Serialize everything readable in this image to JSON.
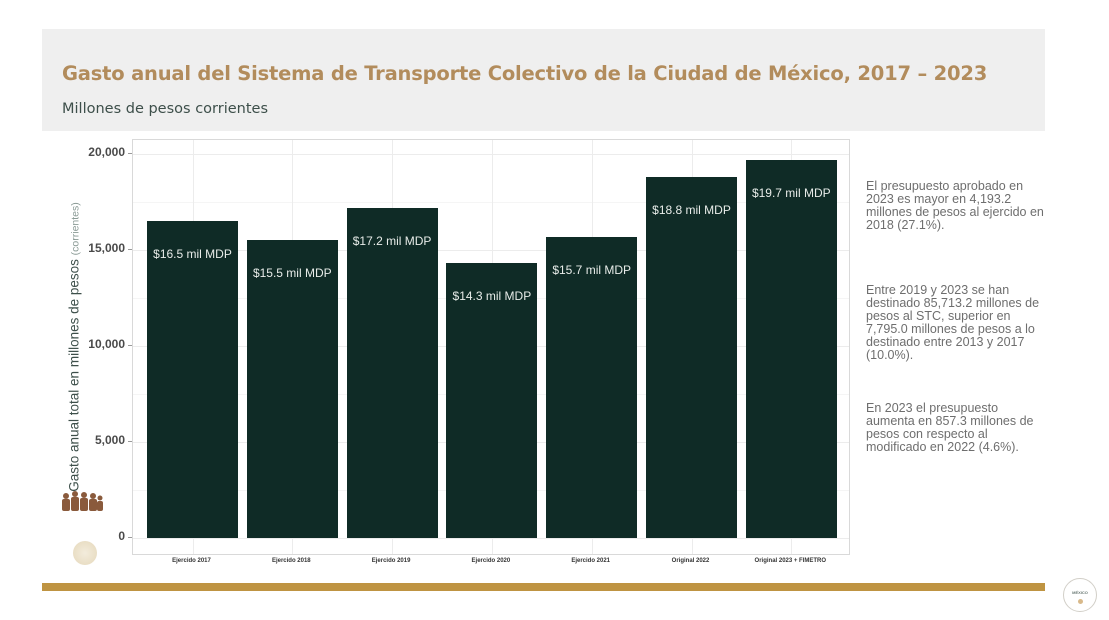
{
  "header": {
    "title": "Gasto anual del Sistema de Transporte Colectivo de la Ciudad de México, 2017 – 2023",
    "subtitle": "Millones de pesos corrientes"
  },
  "chart_data": {
    "type": "bar",
    "title": "Gasto anual del Sistema de Transporte Colectivo de la Ciudad de México, 2017 – 2023",
    "subtitle": "Millones de pesos corrientes",
    "xlabel": "",
    "ylabel": "Gasto anual total en millones de pesos",
    "ylabel_suffix": "(corrientes)",
    "categories": [
      "Ejercido 2017",
      "Ejercido 2018",
      "Ejercido 2019",
      "Ejercido 2020",
      "Ejercido 2021",
      "Original 2022",
      "Original 2023 + FIMETRO"
    ],
    "values": [
      16500,
      15500,
      17200,
      14300,
      15700,
      18800,
      19700
    ],
    "data_labels": [
      "$16.5 mil MDP",
      "$15.5 mil MDP",
      "$17.2 mil MDP",
      "$14.3 mil MDP",
      "$15.7 mil MDP",
      "$18.8 mil MDP",
      "$19.7 mil MDP"
    ],
    "yticks": [
      "0",
      "5,000",
      "10,000",
      "15,000",
      "20,000"
    ],
    "ytick_values": [
      0,
      5000,
      10000,
      15000,
      20000
    ],
    "ylim": [
      0,
      20700
    ],
    "grid": true,
    "legend": null,
    "bar_color": "#0f2b26"
  },
  "notes": [
    "El presupuesto aprobado en 2023 es mayor en 4,193.2 millones de pesos al ejercido en 2018 (27.1%).",
    "Entre 2019 y 2023 se han destinado 85,713.2 millones de pesos al STC, superior en 7,795.0 millones de pesos a lo destinado entre 2013 y 2017 (10.0%).",
    "En 2023 el presupuesto aumenta en 857.3 millones de pesos con respecto al modificado en 2022 (4.6%)."
  ],
  "footer": {
    "right_logo_text": "MÉXICO"
  },
  "colors": {
    "title": "#b28c5c",
    "bar": "#0f2b26",
    "gold_bar": "#bf9442",
    "header_bg": "#efefef"
  }
}
